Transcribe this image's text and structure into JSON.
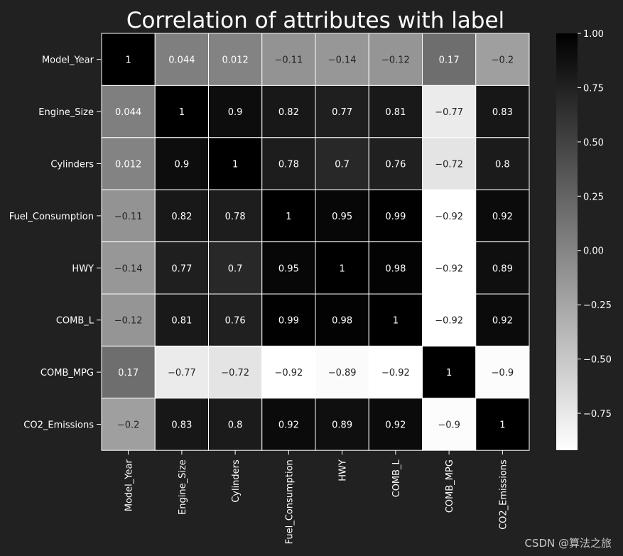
{
  "chart_data": {
    "type": "heatmap",
    "title": "Correlation of attributes with label",
    "rows": [
      "Model_Year",
      "Engine_Size",
      "Cylinders",
      "Fuel_Consumption",
      "HWY",
      "COMB_L",
      "COMB_MPG",
      "CO2_Emissions"
    ],
    "columns": [
      "Model_Year",
      "Engine_Size",
      "Cylinders",
      "Fuel_Consumption",
      "HWY",
      "COMB_L",
      "COMB_MPG",
      "CO2_Emissions"
    ],
    "values": [
      [
        1,
        0.044,
        0.012,
        -0.11,
        -0.14,
        -0.12,
        0.17,
        -0.2
      ],
      [
        0.044,
        1,
        0.9,
        0.82,
        0.77,
        0.81,
        -0.77,
        0.83
      ],
      [
        0.012,
        0.9,
        1,
        0.78,
        0.7,
        0.76,
        -0.72,
        0.8
      ],
      [
        -0.11,
        0.82,
        0.78,
        1,
        0.95,
        0.99,
        -0.92,
        0.92
      ],
      [
        -0.14,
        0.77,
        0.7,
        0.95,
        1,
        0.98,
        -0.92,
        0.89
      ],
      [
        -0.12,
        0.81,
        0.76,
        0.99,
        0.98,
        1,
        -0.92,
        0.92
      ],
      [
        0.17,
        -0.77,
        -0.72,
        -0.92,
        -0.89,
        -0.92,
        1,
        -0.9
      ],
      [
        -0.2,
        0.83,
        0.8,
        0.92,
        0.89,
        0.92,
        -0.9,
        1
      ]
    ],
    "colorbar": {
      "min": -0.92,
      "max": 1.0,
      "ticks": [
        1.0,
        0.75,
        0.5,
        0.25,
        0.0,
        -0.25,
        -0.5,
        -0.75
      ],
      "tick_labels": [
        "1.00",
        "0.75",
        "0.50",
        "0.25",
        "0.00",
        "−0.25",
        "−0.50",
        "−0.75"
      ],
      "colormap": "gray_reversed",
      "low_color": "#ffffff",
      "high_color": "#000000"
    },
    "grid_line_color": "#ffffff"
  },
  "watermark": "CSDN @算法之旅"
}
